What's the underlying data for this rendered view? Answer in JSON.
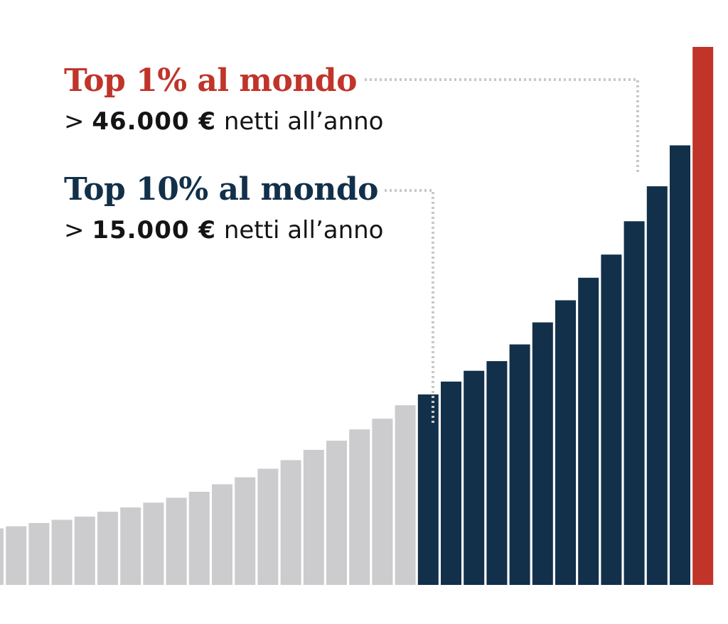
{
  "annotations": {
    "top1": {
      "title": "Top 1% al mondo",
      "prefix": ">",
      "amount": "46.000 €",
      "suffix": "netti all’anno",
      "color": "#c0342a"
    },
    "top10": {
      "title": "Top 10% al mondo",
      "prefix": ">",
      "amount": "15.000 €",
      "suffix": "netti all’anno",
      "color": "#12304a"
    }
  },
  "chart_data": {
    "type": "bar",
    "title": "",
    "xlabel": "",
    "ylabel": "",
    "grid": false,
    "legend": false,
    "ylim": [
      0,
      100
    ],
    "values": [
      10.5,
      10.9,
      11.5,
      12.1,
      12.7,
      13.6,
      14.4,
      15.3,
      16.2,
      17.3,
      18.7,
      20.0,
      21.6,
      23.2,
      25.1,
      26.8,
      28.9,
      30.9,
      33.4,
      35.4,
      37.8,
      39.8,
      41.6,
      44.7,
      48.8,
      52.9,
      57.1,
      61.4,
      67.6,
      74.1,
      81.7,
      100.0
    ],
    "groups": [
      {
        "range": [
          0,
          18
        ],
        "color": "#cccbcd"
      },
      {
        "range": [
          19,
          30
        ],
        "color": "#12304a"
      },
      {
        "range": [
          31,
          31
        ],
        "color": "#c0342a"
      }
    ],
    "connector_color": "#c8c8c8"
  }
}
